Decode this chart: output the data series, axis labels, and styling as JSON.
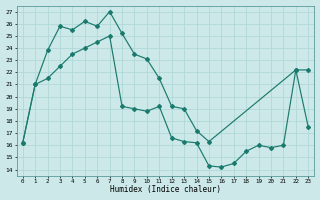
{
  "xlabel": "Humidex (Indice chaleur)",
  "bg_color": "#cce8e8",
  "grid_color": "#b0d8d8",
  "line_color": "#1a7a6e",
  "xlim": [
    -0.5,
    23.5
  ],
  "ylim": [
    13.5,
    27.5
  ],
  "yticks": [
    14,
    15,
    16,
    17,
    18,
    19,
    20,
    21,
    22,
    23,
    24,
    25,
    26,
    27
  ],
  "xticks": [
    0,
    1,
    2,
    3,
    4,
    5,
    6,
    7,
    8,
    9,
    10,
    11,
    12,
    13,
    14,
    15,
    16,
    17,
    18,
    19,
    20,
    21,
    22,
    23
  ],
  "line1_x": [
    0,
    1,
    2,
    3,
    4,
    5,
    6,
    7,
    8,
    9,
    10,
    11,
    12,
    13,
    14,
    15,
    22,
    23
  ],
  "line1_y": [
    16.2,
    21.0,
    23.8,
    25.8,
    25.5,
    26.2,
    25.8,
    27.0,
    25.2,
    23.5,
    23.1,
    21.5,
    19.2,
    19.0,
    17.2,
    16.3,
    22.2,
    22.2
  ],
  "line2_x": [
    0,
    1,
    2,
    3,
    4,
    5,
    6,
    7,
    8,
    9,
    10,
    11,
    12,
    13,
    14,
    15,
    16,
    17,
    18,
    19,
    20,
    21,
    22,
    23
  ],
  "line2_y": [
    16.2,
    21.0,
    21.5,
    22.5,
    23.5,
    24.0,
    24.5,
    25.0,
    19.2,
    19.0,
    18.8,
    19.2,
    16.6,
    16.3,
    16.2,
    14.3,
    14.2,
    14.5,
    15.5,
    16.0,
    15.8,
    16.0,
    22.2,
    17.5
  ]
}
